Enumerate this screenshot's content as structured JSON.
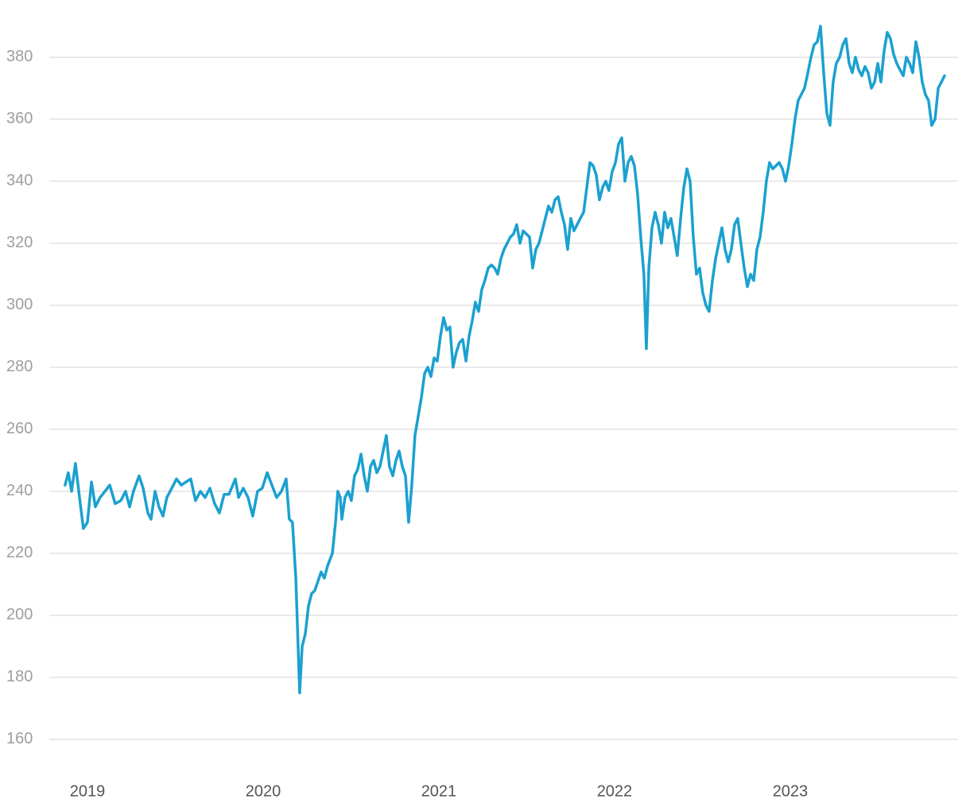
{
  "chart_data": {
    "type": "line",
    "x": [
      2018.873,
      2018.891,
      2018.91,
      2018.932,
      2018.955,
      2018.977,
      2019.0,
      2019.023,
      2019.045,
      2019.072,
      2019.1,
      2019.127,
      2019.158,
      2019.19,
      2019.217,
      2019.24,
      2019.262,
      2019.294,
      2019.317,
      2019.344,
      2019.362,
      2019.385,
      2019.407,
      2019.43,
      2019.452,
      2019.48,
      2019.507,
      2019.534,
      2019.561,
      2019.588,
      2019.615,
      2019.643,
      2019.67,
      2019.697,
      2019.724,
      2019.751,
      2019.778,
      2019.805,
      2019.842,
      2019.86,
      2019.887,
      2019.914,
      2019.941,
      2019.968,
      2019.995,
      2020.023,
      2020.05,
      2020.077,
      2020.104,
      2020.131,
      2020.149,
      2020.167,
      2020.186,
      2020.199,
      2020.208,
      2020.222,
      2020.24,
      2020.258,
      2020.276,
      2020.294,
      2020.312,
      2020.33,
      2020.348,
      2020.367,
      2020.394,
      2020.412,
      2020.425,
      2020.439,
      2020.448,
      2020.466,
      2020.484,
      2020.502,
      2020.52,
      2020.538,
      2020.557,
      2020.575,
      2020.593,
      2020.611,
      2020.629,
      2020.647,
      2020.665,
      2020.683,
      2020.701,
      2020.719,
      2020.738,
      2020.756,
      2020.774,
      2020.792,
      2020.81,
      2020.828,
      2020.846,
      2020.864,
      2020.882,
      2020.9,
      2020.919,
      2020.937,
      2020.955,
      2020.973,
      2020.991,
      2021.009,
      2021.027,
      2021.045,
      2021.063,
      2021.081,
      2021.1,
      2021.118,
      2021.136,
      2021.154,
      2021.172,
      2021.19,
      2021.208,
      2021.226,
      2021.244,
      2021.262,
      2021.281,
      2021.299,
      2021.317,
      2021.335,
      2021.353,
      2021.371,
      2021.389,
      2021.407,
      2021.425,
      2021.443,
      2021.462,
      2021.48,
      2021.498,
      2021.516,
      2021.534,
      2021.552,
      2021.57,
      2021.588,
      2021.606,
      2021.624,
      2021.643,
      2021.661,
      2021.679,
      2021.697,
      2021.715,
      2021.733,
      2021.751,
      2021.769,
      2021.787,
      2021.805,
      2021.824,
      2021.842,
      2021.86,
      2021.878,
      2021.896,
      2021.914,
      2021.932,
      2021.95,
      2021.968,
      2021.986,
      2022.005,
      2022.023,
      2022.041,
      2022.059,
      2022.077,
      2022.095,
      2022.113,
      2022.131,
      2022.149,
      2022.167,
      2022.181,
      2022.195,
      2022.213,
      2022.231,
      2022.249,
      2022.267,
      2022.285,
      2022.303,
      2022.321,
      2022.339,
      2022.357,
      2022.376,
      2022.394,
      2022.412,
      2022.43,
      2022.448,
      2022.466,
      2022.484,
      2022.502,
      2022.52,
      2022.538,
      2022.557,
      2022.575,
      2022.593,
      2022.611,
      2022.629,
      2022.647,
      2022.665,
      2022.683,
      2022.701,
      2022.719,
      2022.738,
      2022.756,
      2022.774,
      2022.792,
      2022.81,
      2022.828,
      2022.846,
      2022.864,
      2022.882,
      2022.9,
      2022.919,
      2022.937,
      2022.955,
      2022.973,
      2022.991,
      2023.009,
      2023.027,
      2023.045,
      2023.063,
      2023.081,
      2023.1,
      2023.118,
      2023.136,
      2023.154,
      2023.172,
      2023.19,
      2023.208,
      2023.226,
      2023.244,
      2023.262,
      2023.281,
      2023.299,
      2023.317,
      2023.335,
      2023.353,
      2023.371,
      2023.389,
      2023.407,
      2023.425,
      2023.443,
      2023.462,
      2023.48,
      2023.498,
      2023.516,
      2023.534,
      2023.552,
      2023.57,
      2023.588,
      2023.606,
      2023.624,
      2023.643,
      2023.661,
      2023.679,
      2023.697,
      2023.715,
      2023.733,
      2023.751,
      2023.769,
      2023.787,
      2023.805,
      2023.824,
      2023.842,
      2023.86,
      2023.878
    ],
    "series": [
      {
        "color": "#1ba1cf",
        "values": [
          242,
          246,
          240,
          249,
          238,
          228,
          230,
          243,
          235,
          238,
          240,
          242,
          236,
          237,
          240,
          235,
          240,
          245,
          241,
          233,
          231,
          240,
          235,
          232,
          238,
          241,
          244,
          242,
          243,
          244,
          237,
          240,
          238,
          241,
          236,
          233,
          239,
          239,
          244,
          238,
          241,
          238,
          232,
          240,
          241,
          246,
          242,
          238,
          240,
          244,
          231,
          230,
          212,
          190,
          175,
          190,
          194,
          203,
          207,
          208,
          211,
          214,
          212,
          216,
          220,
          230,
          240,
          238,
          231,
          238,
          240,
          237,
          245,
          247,
          252,
          245,
          240,
          248,
          250,
          246,
          248,
          253,
          258,
          248,
          245,
          250,
          253,
          248,
          245,
          230,
          242,
          258,
          264,
          270,
          278,
          280,
          277,
          283,
          282,
          290,
          296,
          292,
          293,
          280,
          285,
          288,
          289,
          282,
          290,
          295,
          301,
          298,
          305,
          308,
          312,
          313,
          312,
          310,
          315,
          318,
          320,
          322,
          323,
          326,
          320,
          324,
          323,
          322,
          312,
          318,
          320,
          324,
          328,
          332,
          330,
          334,
          335,
          330,
          326,
          318,
          328,
          324,
          326,
          328,
          330,
          338,
          346,
          345,
          342,
          334,
          338,
          340,
          337,
          343,
          346,
          352,
          354,
          340,
          346,
          348,
          345,
          336,
          322,
          310,
          286,
          312,
          325,
          330,
          326,
          320,
          330,
          325,
          328,
          322,
          316,
          328,
          338,
          344,
          340,
          322,
          310,
          312,
          304,
          300,
          298,
          308,
          315,
          320,
          325,
          318,
          314,
          318,
          326,
          328,
          320,
          312,
          306,
          310,
          308,
          318,
          322,
          330,
          340,
          346,
          344,
          345,
          346,
          344,
          340,
          345,
          352,
          360,
          366,
          368,
          370,
          375,
          380,
          384,
          385,
          390,
          375,
          362,
          358,
          372,
          378,
          380,
          384,
          386,
          378,
          375,
          380,
          376,
          374,
          377,
          375,
          370,
          372,
          378,
          372,
          382,
          388,
          386,
          381,
          378,
          376,
          374,
          380,
          378,
          375,
          385,
          380,
          372,
          368,
          366,
          358,
          360,
          370,
          372,
          374
        ]
      }
    ],
    "xlim": [
      2018.783,
      2023.955
    ],
    "xticks": [
      2019,
      2020,
      2021,
      2022,
      2023
    ],
    "ylim": [
      151,
      394.6
    ],
    "yticks": [
      160,
      180,
      200,
      220,
      240,
      260,
      280,
      300,
      320,
      340,
      360,
      380
    ],
    "grid": true
  }
}
